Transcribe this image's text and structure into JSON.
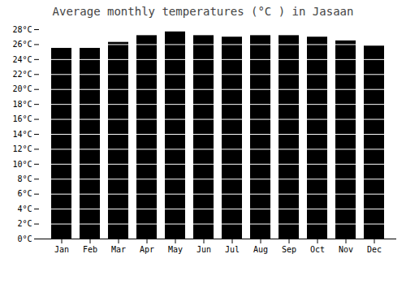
{
  "chart_data": {
    "type": "bar",
    "title": "Average monthly temperatures (°C ) in Jasaan",
    "categories": [
      "Jan",
      "Feb",
      "Mar",
      "Apr",
      "May",
      "Jun",
      "Jul",
      "Aug",
      "Sep",
      "Oct",
      "Nov",
      "Dec"
    ],
    "values": [
      25.5,
      25.5,
      26.3,
      27.2,
      27.7,
      27.2,
      27.0,
      27.2,
      27.2,
      27.0,
      26.5,
      25.8
    ],
    "ylim": [
      0,
      28
    ],
    "yticks": [
      {
        "value": 0,
        "label": "0°C"
      },
      {
        "value": 2,
        "label": "2°C"
      },
      {
        "value": 4,
        "label": "4°C"
      },
      {
        "value": 6,
        "label": "6°C"
      },
      {
        "value": 8,
        "label": "8°C"
      },
      {
        "value": 10,
        "label": "10°C"
      },
      {
        "value": 12,
        "label": "12°C"
      },
      {
        "value": 14,
        "label": "14°C"
      },
      {
        "value": 16,
        "label": "16°C"
      },
      {
        "value": 18,
        "label": "18°C"
      },
      {
        "value": 20,
        "label": "20°C"
      },
      {
        "value": 22,
        "label": "22°C"
      },
      {
        "value": 24,
        "label": "24°C"
      },
      {
        "value": 26,
        "label": "26°C"
      },
      {
        "value": 28,
        "label": "28°C"
      }
    ],
    "grid": true
  }
}
